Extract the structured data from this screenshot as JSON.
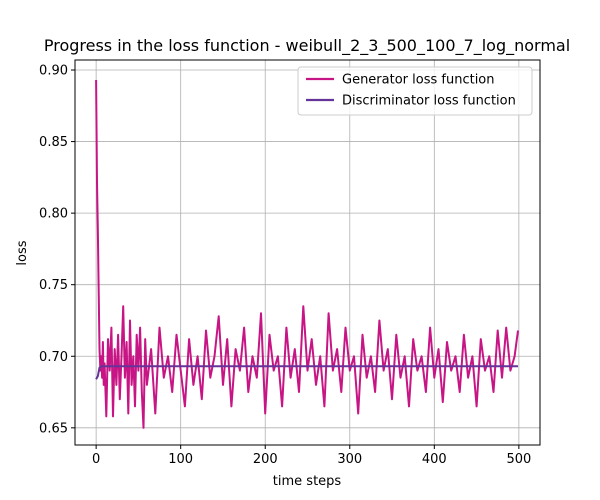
{
  "chart_data": {
    "type": "line",
    "title": "Progress in the loss function - weibull_2_3_500_100_7_log_normal",
    "xlabel": "time steps",
    "ylabel": "loss",
    "xlim": [
      -25,
      525
    ],
    "ylim": [
      0.638,
      0.907
    ],
    "xticks": [
      0,
      100,
      200,
      300,
      400,
      500
    ],
    "yticks": [
      0.65,
      0.7,
      0.75,
      0.8,
      0.85,
      0.9
    ],
    "ytick_labels": [
      "0.65",
      "0.70",
      "0.75",
      "0.80",
      "0.85",
      "0.90"
    ],
    "grid": true,
    "legend_position": "upper-right",
    "series": [
      {
        "name": "Generator loss function",
        "color": "#c71585",
        "x": [
          0,
          1,
          2,
          3,
          4,
          5,
          6,
          7,
          8,
          9,
          10,
          12,
          14,
          16,
          18,
          20,
          22,
          24,
          26,
          28,
          30,
          32,
          34,
          36,
          38,
          40,
          42,
          44,
          46,
          48,
          50,
          52,
          54,
          56,
          58,
          60,
          65,
          70,
          75,
          80,
          85,
          90,
          95,
          100,
          105,
          110,
          115,
          120,
          125,
          130,
          135,
          140,
          145,
          150,
          155,
          160,
          165,
          170,
          175,
          180,
          185,
          190,
          195,
          200,
          205,
          210,
          215,
          220,
          225,
          230,
          235,
          240,
          245,
          250,
          255,
          260,
          265,
          270,
          275,
          280,
          285,
          290,
          295,
          300,
          305,
          310,
          315,
          320,
          325,
          330,
          335,
          340,
          345,
          350,
          355,
          360,
          365,
          370,
          375,
          380,
          385,
          390,
          395,
          400,
          405,
          410,
          415,
          420,
          425,
          430,
          435,
          440,
          445,
          450,
          455,
          460,
          465,
          470,
          475,
          480,
          485,
          490,
          495,
          499
        ],
        "y": [
          0.893,
          0.822,
          0.79,
          0.745,
          0.705,
          0.69,
          0.7,
          0.685,
          0.71,
          0.68,
          0.695,
          0.658,
          0.712,
          0.69,
          0.72,
          0.658,
          0.705,
          0.68,
          0.715,
          0.67,
          0.7,
          0.735,
          0.685,
          0.71,
          0.66,
          0.725,
          0.68,
          0.7,
          0.665,
          0.715,
          0.69,
          0.72,
          0.675,
          0.65,
          0.712,
          0.68,
          0.705,
          0.66,
          0.72,
          0.685,
          0.7,
          0.675,
          0.715,
          0.69,
          0.665,
          0.712,
          0.68,
          0.7,
          0.67,
          0.718,
          0.685,
          0.7,
          0.728,
          0.68,
          0.712,
          0.665,
          0.705,
          0.69,
          0.72,
          0.675,
          0.7,
          0.685,
          0.73,
          0.66,
          0.715,
          0.69,
          0.7,
          0.665,
          0.72,
          0.685,
          0.705,
          0.675,
          0.735,
          0.69,
          0.712,
          0.68,
          0.7,
          0.665,
          0.73,
          0.69,
          0.705,
          0.675,
          0.72,
          0.69,
          0.7,
          0.66,
          0.715,
          0.685,
          0.7,
          0.675,
          0.725,
          0.69,
          0.705,
          0.67,
          0.715,
          0.685,
          0.7,
          0.665,
          0.712,
          0.69,
          0.7,
          0.675,
          0.72,
          0.685,
          0.705,
          0.668,
          0.71,
          0.69,
          0.7,
          0.675,
          0.715,
          0.685,
          0.7,
          0.665,
          0.712,
          0.69,
          0.7,
          0.675,
          0.718,
          0.685,
          0.72,
          0.69,
          0.7,
          0.718
        ]
      },
      {
        "name": "Discriminator loss function",
        "color": "#663399",
        "x": [
          0,
          2,
          4,
          6,
          10,
          499
        ],
        "y": [
          0.684,
          0.686,
          0.692,
          0.693,
          0.693,
          0.693
        ]
      }
    ]
  }
}
